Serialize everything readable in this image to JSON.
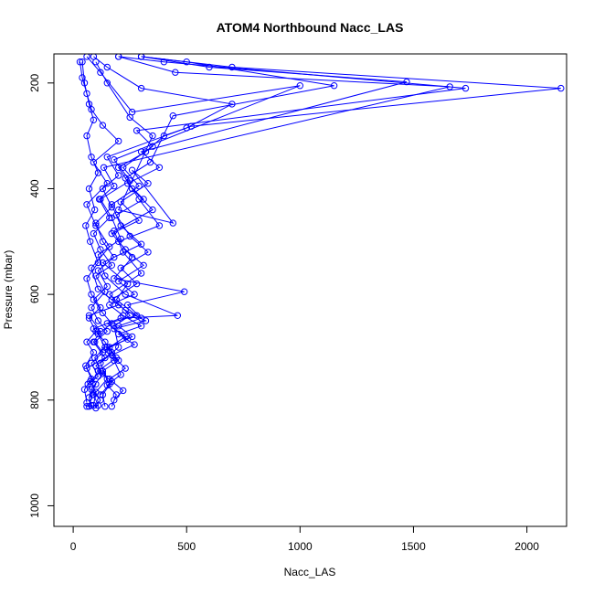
{
  "chart_data": {
    "type": "line",
    "title": "ATOM4 Northbound Nacc_LAS",
    "xlabel": "Nacc_LAS",
    "ylabel": "Pressure (mbar)",
    "xlim": [
      0,
      2200
    ],
    "ylim": [
      1040,
      150
    ],
    "y_reversed": true,
    "marker": "open-circle",
    "line_color": "#0000ff",
    "xticks": [
      0,
      500,
      1000,
      1500,
      2000
    ],
    "yticks": [
      200,
      400,
      600,
      800,
      1000
    ],
    "xtick_labels": [
      "0",
      "500",
      "1000",
      "1500",
      "2000"
    ],
    "ytick_labels": [
      "200",
      "400",
      "600",
      "800",
      "1000"
    ],
    "series": [
      {
        "values": [
          [
            60,
            812
          ],
          [
            110,
            810
          ],
          [
            90,
            790
          ],
          [
            150,
            760
          ],
          [
            120,
            730
          ],
          [
            200,
            700
          ],
          [
            180,
            660
          ],
          [
            250,
            640
          ],
          [
            160,
            600
          ],
          [
            300,
            560
          ],
          [
            220,
            520
          ],
          [
            180,
            480
          ],
          [
            350,
            440
          ],
          [
            260,
            400
          ],
          [
            200,
            360
          ],
          [
            320,
            330
          ],
          [
            400,
            300
          ],
          [
            500,
            285
          ],
          [
            700,
            240
          ],
          [
            300,
            210
          ],
          [
            150,
            170
          ],
          [
            90,
            150
          ]
        ]
      },
      {
        "values": [
          [
            80,
            810
          ],
          [
            70,
            795
          ],
          [
            100,
            770
          ],
          [
            60,
            740
          ],
          [
            140,
            720
          ],
          [
            90,
            690
          ],
          [
            120,
            670
          ],
          [
            70,
            640
          ],
          [
            200,
            620
          ],
          [
            110,
            590
          ],
          [
            80,
            550
          ],
          [
            160,
            510
          ],
          [
            100,
            470
          ],
          [
            60,
            430
          ],
          [
            150,
            390
          ],
          [
            90,
            350
          ],
          [
            200,
            310
          ],
          [
            130,
            280
          ],
          [
            80,
            250
          ],
          [
            60,
            220
          ],
          [
            40,
            190
          ],
          [
            30,
            160
          ]
        ]
      },
      {
        "values": [
          [
            140,
            812
          ],
          [
            130,
            790
          ],
          [
            170,
            765
          ],
          [
            110,
            745
          ],
          [
            190,
            720
          ],
          [
            160,
            700
          ],
          [
            230,
            680
          ],
          [
            150,
            655
          ],
          [
            280,
            640
          ],
          [
            190,
            610
          ],
          [
            240,
            580
          ],
          [
            130,
            540
          ],
          [
            300,
            505
          ],
          [
            210,
            470
          ],
          [
            170,
            430
          ],
          [
            290,
            395
          ],
          [
            220,
            360
          ],
          [
            350,
            320
          ],
          [
            280,
            290
          ],
          [
            1730,
            210
          ],
          [
            400,
            160
          ],
          [
            200,
            150
          ]
        ]
      },
      {
        "values": [
          [
            100,
            815
          ],
          [
            120,
            800
          ],
          [
            80,
            780
          ],
          [
            130,
            750
          ],
          [
            100,
            735
          ],
          [
            170,
            710
          ],
          [
            140,
            690
          ],
          [
            90,
            665
          ],
          [
            210,
            645
          ],
          [
            460,
            640
          ],
          [
            230,
            600
          ],
          [
            140,
            565
          ],
          [
            110,
            525
          ],
          [
            210,
            495
          ],
          [
            170,
            455
          ],
          [
            120,
            420
          ],
          [
            250,
            385
          ],
          [
            180,
            345
          ],
          [
            1000,
            205
          ],
          [
            260,
            255
          ],
          [
            120,
            180
          ],
          [
            60,
            150
          ]
        ]
      },
      {
        "values": [
          [
            170,
            812
          ],
          [
            190,
            790
          ],
          [
            150,
            772
          ],
          [
            210,
            752
          ],
          [
            180,
            725
          ],
          [
            140,
            705
          ],
          [
            260,
            680
          ],
          [
            200,
            660
          ],
          [
            300,
            645
          ],
          [
            240,
            620
          ],
          [
            490,
            595
          ],
          [
            180,
            570
          ],
          [
            260,
            530
          ],
          [
            200,
            500
          ],
          [
            380,
            470
          ],
          [
            290,
            420
          ],
          [
            230,
            380
          ],
          [
            340,
            350
          ],
          [
            440,
            262
          ],
          [
            1150,
            205
          ],
          [
            500,
            160
          ],
          [
            300,
            150
          ]
        ]
      },
      {
        "values": [
          [
            60,
            805
          ],
          [
            50,
            780
          ],
          [
            80,
            760
          ],
          [
            55,
            735
          ],
          [
            90,
            710
          ],
          [
            60,
            690
          ],
          [
            100,
            670
          ],
          [
            70,
            645
          ],
          [
            120,
            625
          ],
          [
            80,
            600
          ],
          [
            60,
            570
          ],
          [
            110,
            540
          ],
          [
            75,
            500
          ],
          [
            55,
            470
          ],
          [
            95,
            440
          ],
          [
            70,
            400
          ],
          [
            110,
            370
          ],
          [
            80,
            340
          ],
          [
            60,
            300
          ],
          [
            90,
            270
          ],
          [
            70,
            240
          ],
          [
            50,
            200
          ],
          [
            40,
            160
          ]
        ]
      },
      {
        "values": [
          [
            120,
            790
          ],
          [
            160,
            770
          ],
          [
            130,
            745
          ],
          [
            200,
            725
          ],
          [
            150,
            700
          ],
          [
            240,
            685
          ],
          [
            180,
            665
          ],
          [
            320,
            650
          ],
          [
            230,
            630
          ],
          [
            170,
            610
          ],
          [
            280,
            580
          ],
          [
            210,
            550
          ],
          [
            330,
            520
          ],
          [
            250,
            490
          ],
          [
            190,
            450
          ],
          [
            310,
            420
          ],
          [
            240,
            390
          ],
          [
            380,
            360
          ],
          [
            300,
            330
          ],
          [
            1470,
            198
          ],
          [
            600,
            170
          ],
          [
            300,
            150
          ]
        ]
      },
      {
        "values": [
          [
            90,
            810
          ],
          [
            100,
            785
          ],
          [
            75,
            765
          ],
          [
            120,
            745
          ],
          [
            95,
            720
          ],
          [
            140,
            700
          ],
          [
            110,
            675
          ],
          [
            170,
            655
          ],
          [
            130,
            635
          ],
          [
            90,
            610
          ],
          [
            150,
            585
          ],
          [
            110,
            555
          ],
          [
            180,
            530
          ],
          [
            130,
            500
          ],
          [
            100,
            465
          ],
          [
            170,
            435
          ],
          [
            130,
            400
          ],
          [
            200,
            375
          ],
          [
            150,
            340
          ],
          [
            520,
            282
          ],
          [
            2150,
            210
          ],
          [
            700,
            170
          ],
          [
            300,
            150
          ]
        ]
      },
      {
        "values": [
          [
            70,
            812
          ],
          [
            85,
            790
          ],
          [
            65,
            770
          ],
          [
            110,
            755
          ],
          [
            80,
            730
          ],
          [
            130,
            710
          ],
          [
            95,
            690
          ],
          [
            150,
            670
          ],
          [
            110,
            650
          ],
          [
            80,
            625
          ],
          [
            140,
            595
          ],
          [
            100,
            565
          ],
          [
            170,
            545
          ],
          [
            120,
            515
          ],
          [
            90,
            485
          ],
          [
            160,
            455
          ],
          [
            115,
            420
          ],
          [
            180,
            395
          ],
          [
            135,
            360
          ],
          [
            1660,
            207
          ],
          [
            450,
            180
          ],
          [
            200,
            150
          ]
        ]
      },
      {
        "values": [
          [
            180,
            800
          ],
          [
            220,
            782
          ],
          [
            160,
            760
          ],
          [
            230,
            740
          ],
          [
            170,
            715
          ],
          [
            270,
            695
          ],
          [
            200,
            675
          ],
          [
            300,
            660
          ],
          [
            220,
            640
          ],
          [
            160,
            620
          ],
          [
            270,
            600
          ],
          [
            200,
            575
          ],
          [
            310,
            545
          ],
          [
            230,
            515
          ],
          [
            170,
            485
          ],
          [
            290,
            460
          ],
          [
            210,
            425
          ],
          [
            330,
            390
          ],
          [
            260,
            365
          ],
          [
            440,
            465
          ],
          [
            200,
            440
          ],
          [
            350,
            300
          ],
          [
            250,
            265
          ],
          [
            150,
            200
          ],
          [
            100,
            160
          ]
        ]
      }
    ]
  }
}
